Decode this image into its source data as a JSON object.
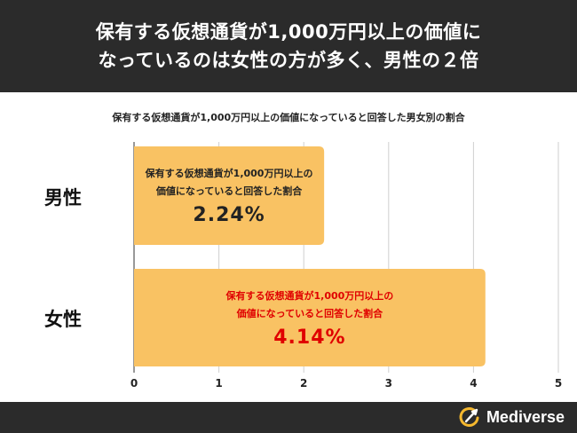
{
  "header": {
    "line1": "保有する仮想通貨が1,000万円以上の価値に",
    "line2": "なっているのは女性の方が多く、男性の２倍"
  },
  "footer": {
    "brand_name": "Mediverse",
    "brand_icon": "mediverse-logo-icon"
  },
  "colors": {
    "bar": "#f9c263",
    "dark_bg": "#2b2b2b",
    "male_text": "#222222",
    "female_text": "#e00000",
    "logo_accent": "#f5b82e",
    "grid": "#cfcfcf"
  },
  "chart_data": {
    "type": "bar",
    "orientation": "horizontal",
    "title": "保有する仮想通貨が1,000万円以上の価値になっていると回答した男女別の割合",
    "categories": [
      "男性",
      "女性"
    ],
    "values": [
      2.24,
      4.14
    ],
    "data_labels": [
      "2.24%",
      "4.14%"
    ],
    "bar_caption_lines": [
      "保有する仮想通貨が1,000万円以上の",
      "価値になっていると回答した割合"
    ],
    "xlim": [
      0,
      5
    ],
    "x_ticks": [
      "0",
      "1",
      "2",
      "3",
      "4",
      "5"
    ],
    "grid": true,
    "legend": "none"
  }
}
